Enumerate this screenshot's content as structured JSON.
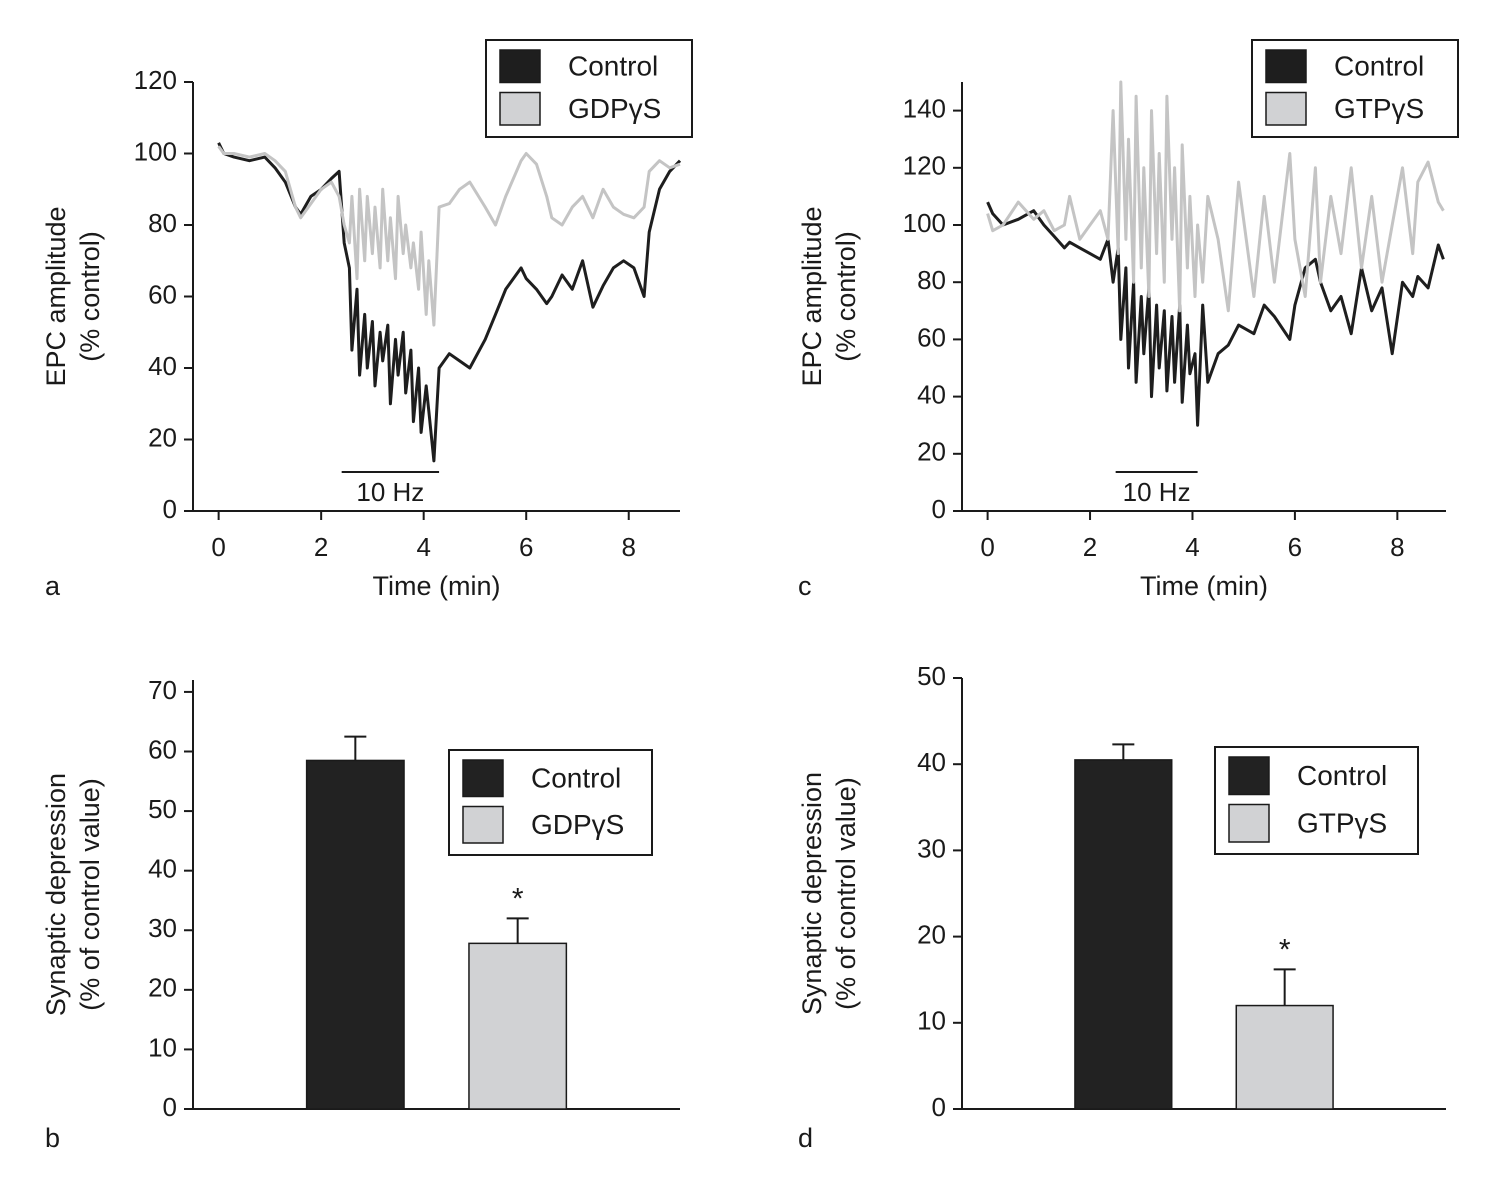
{
  "chart_data": [
    {
      "type": "line",
      "panel": "a",
      "xlabel": "Time (min)",
      "ylabel": [
        "EPC amplitude",
        "(% control)"
      ],
      "xlim": [
        -0.5,
        9
      ],
      "xticks": [
        0,
        2,
        4,
        6,
        8
      ],
      "ylim": [
        0,
        120
      ],
      "yticks": [
        0,
        20,
        40,
        60,
        80,
        100,
        120
      ],
      "stimulus": {
        "label": "10 Hz",
        "start": 2.4,
        "end": 4.3
      },
      "x": [
        0,
        0.1,
        0.3,
        0.6,
        0.9,
        1.1,
        1.3,
        1.5,
        1.6,
        1.8,
        2.0,
        2.2,
        2.35,
        2.45,
        2.55,
        2.6,
        2.7,
        2.75,
        2.85,
        2.9,
        3.0,
        3.05,
        3.15,
        3.2,
        3.3,
        3.35,
        3.45,
        3.5,
        3.6,
        3.65,
        3.75,
        3.8,
        3.9,
        3.95,
        4.05,
        4.1,
        4.2,
        4.3,
        4.5,
        4.7,
        4.9,
        5.2,
        5.4,
        5.6,
        5.9,
        6.0,
        6.2,
        6.4,
        6.5,
        6.7,
        6.9,
        7.1,
        7.3,
        7.5,
        7.7,
        7.9,
        8.1,
        8.3,
        8.4,
        8.6,
        8.8,
        9.0
      ],
      "series": [
        {
          "name": "Control",
          "color": "#1e1e1e",
          "values": [
            103,
            100,
            99,
            98,
            99,
            96,
            92,
            85,
            83,
            88,
            90,
            93,
            95,
            75,
            68,
            45,
            62,
            38,
            55,
            40,
            53,
            35,
            50,
            42,
            52,
            30,
            48,
            38,
            50,
            33,
            45,
            25,
            40,
            22,
            35,
            28,
            14,
            40,
            44,
            42,
            40,
            48,
            55,
            62,
            68,
            65,
            62,
            58,
            60,
            66,
            62,
            70,
            57,
            63,
            68,
            70,
            68,
            60,
            78,
            90,
            95,
            98
          ]
        },
        {
          "name": "GDPγS",
          "color": "#c4c4c4",
          "values": [
            102,
            100,
            100,
            99,
            100,
            98,
            95,
            85,
            82,
            86,
            90,
            92,
            88,
            80,
            75,
            88,
            65,
            90,
            70,
            88,
            72,
            85,
            68,
            90,
            70,
            82,
            65,
            88,
            72,
            80,
            68,
            75,
            62,
            78,
            55,
            70,
            52,
            85,
            86,
            90,
            92,
            85,
            80,
            88,
            98,
            100,
            97,
            88,
            82,
            80,
            85,
            88,
            82,
            90,
            85,
            83,
            82,
            85,
            95,
            98,
            96,
            97
          ]
        }
      ]
    },
    {
      "type": "line",
      "panel": "c",
      "xlabel": "Time (min)",
      "ylabel": [
        "EPC amplitude",
        "(% control)"
      ],
      "xlim": [
        -0.5,
        8.95
      ],
      "xticks": [
        0,
        2,
        4,
        6,
        8
      ],
      "ylim": [
        0,
        150
      ],
      "yticks": [
        0,
        20,
        40,
        60,
        80,
        100,
        120,
        140
      ],
      "stimulus": {
        "label": "10 Hz",
        "start": 2.5,
        "end": 4.1
      },
      "x": [
        0,
        0.1,
        0.3,
        0.6,
        0.9,
        1.1,
        1.3,
        1.5,
        1.6,
        1.8,
        2.0,
        2.2,
        2.35,
        2.45,
        2.55,
        2.6,
        2.7,
        2.75,
        2.85,
        2.9,
        3.0,
        3.05,
        3.15,
        3.2,
        3.3,
        3.35,
        3.45,
        3.5,
        3.6,
        3.65,
        3.75,
        3.8,
        3.9,
        3.95,
        4.05,
        4.1,
        4.2,
        4.3,
        4.5,
        4.7,
        4.9,
        5.2,
        5.4,
        5.6,
        5.9,
        6.0,
        6.2,
        6.4,
        6.5,
        6.7,
        6.9,
        7.1,
        7.3,
        7.5,
        7.7,
        7.9,
        8.1,
        8.3,
        8.4,
        8.6,
        8.8,
        8.9
      ],
      "series": [
        {
          "name": "Control",
          "color": "#1e1e1e",
          "values": [
            108,
            104,
            100,
            102,
            105,
            100,
            96,
            92,
            94,
            92,
            90,
            88,
            95,
            80,
            92,
            60,
            85,
            50,
            80,
            45,
            75,
            55,
            78,
            40,
            72,
            50,
            70,
            42,
            68,
            45,
            72,
            38,
            65,
            48,
            55,
            30,
            72,
            45,
            55,
            58,
            65,
            62,
            72,
            68,
            60,
            72,
            85,
            88,
            80,
            70,
            75,
            62,
            85,
            70,
            78,
            55,
            80,
            75,
            82,
            78,
            93,
            88
          ]
        },
        {
          "name": "GTPγS",
          "color": "#c4c4c4",
          "values": [
            104,
            98,
            100,
            108,
            102,
            105,
            98,
            100,
            110,
            95,
            100,
            105,
            95,
            140,
            90,
            150,
            95,
            130,
            80,
            145,
            85,
            120,
            75,
            140,
            90,
            125,
            80,
            145,
            95,
            120,
            70,
            128,
            85,
            110,
            75,
            100,
            80,
            110,
            95,
            70,
            115,
            75,
            110,
            80,
            125,
            95,
            75,
            120,
            80,
            110,
            90,
            120,
            85,
            110,
            80,
            100,
            120,
            90,
            115,
            122,
            108,
            105
          ]
        }
      ]
    },
    {
      "type": "bar",
      "panel": "b",
      "ylabel": [
        "Synaptic depression",
        "(% of control value)"
      ],
      "ylim": [
        0,
        72
      ],
      "yticks": [
        0,
        10,
        20,
        30,
        40,
        50,
        60,
        70
      ],
      "categories": [
        null
      ],
      "series": [
        {
          "name": "Control",
          "color": "#222222",
          "values": [
            58.5
          ],
          "errors": [
            4
          ]
        },
        {
          "name": "GDPγS",
          "color": "#d1d2d4",
          "values": [
            27.8
          ],
          "errors": [
            4.2
          ],
          "annotation": "*"
        }
      ]
    },
    {
      "type": "bar",
      "panel": "d",
      "ylabel": [
        "Synaptic depression",
        "(% of control value)"
      ],
      "ylim": [
        0,
        50
      ],
      "yticks": [
        0,
        10,
        20,
        30,
        40,
        50
      ],
      "categories": [
        null
      ],
      "series": [
        {
          "name": "Control",
          "color": "#222222",
          "values": [
            40.5
          ],
          "errors": [
            1.8
          ]
        },
        {
          "name": "GTPγS",
          "color": "#d1d2d4",
          "values": [
            12
          ],
          "errors": [
            4.2
          ],
          "annotation": "*"
        }
      ]
    }
  ]
}
